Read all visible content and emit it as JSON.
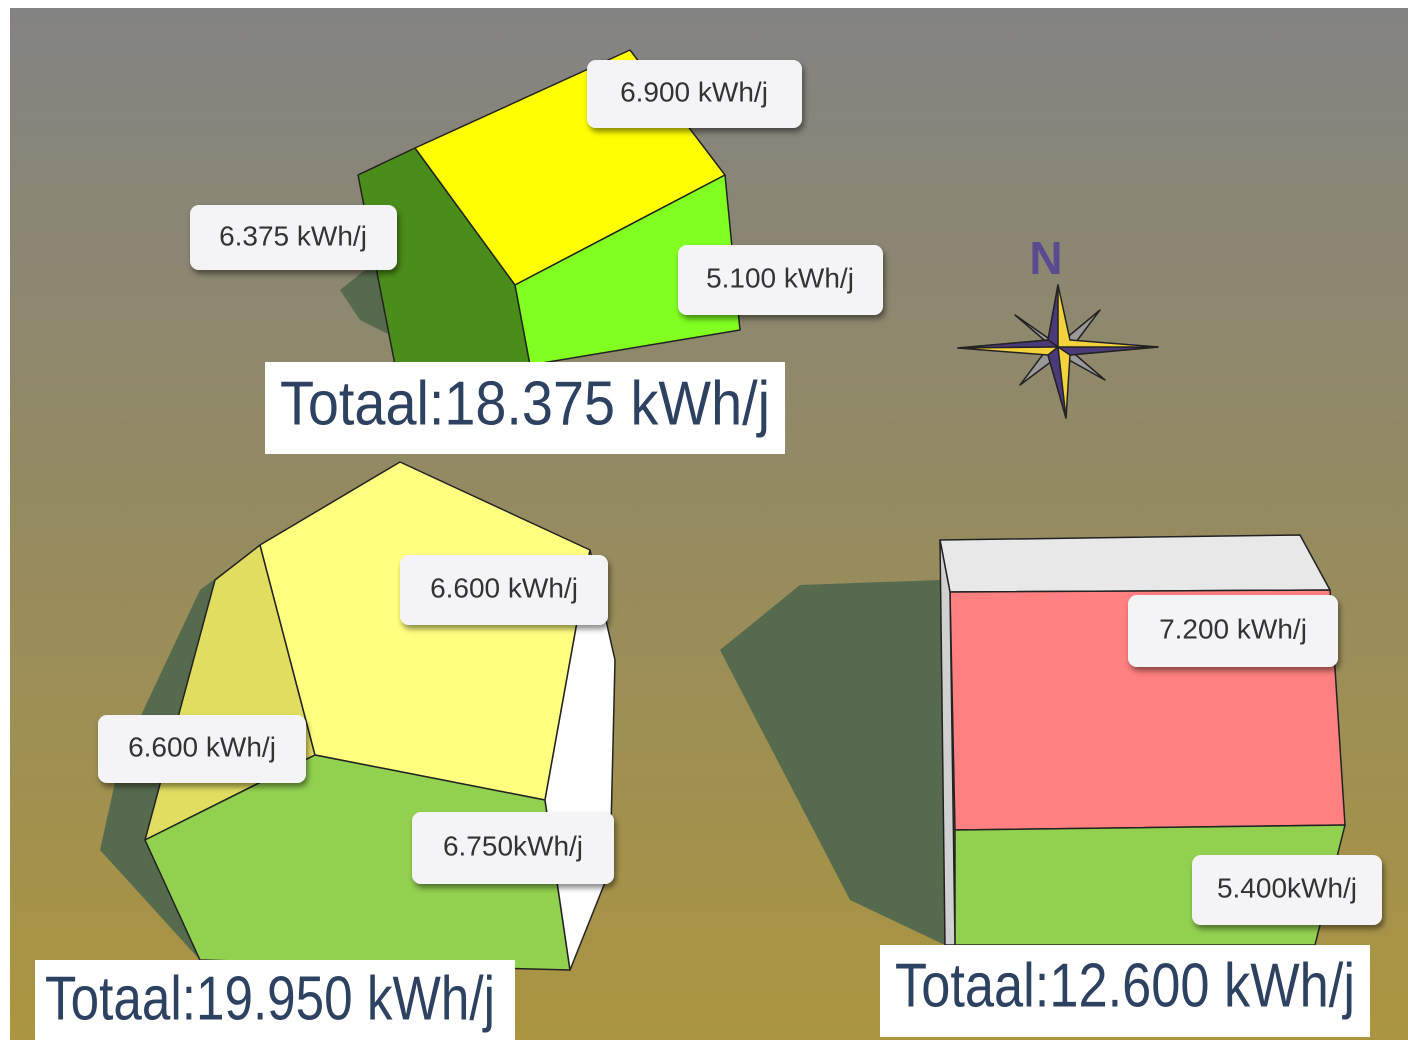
{
  "compass": {
    "label": "N"
  },
  "buildings": [
    {
      "faces": [
        "6.900 kWh/j",
        "6.375 kWh/j",
        "5.100 kWh/j"
      ],
      "total": "Totaal:18.375 kWh/j"
    },
    {
      "faces": [
        "6.600 kWh/j",
        "6.600 kWh/j",
        "6.750kWh/j"
      ],
      "total": "Totaal:19.950 kWh/j"
    },
    {
      "faces": [
        "7.200 kWh/j",
        "5.400kWh/j"
      ],
      "total": "Totaal:12.600 kWh/j"
    }
  ]
}
